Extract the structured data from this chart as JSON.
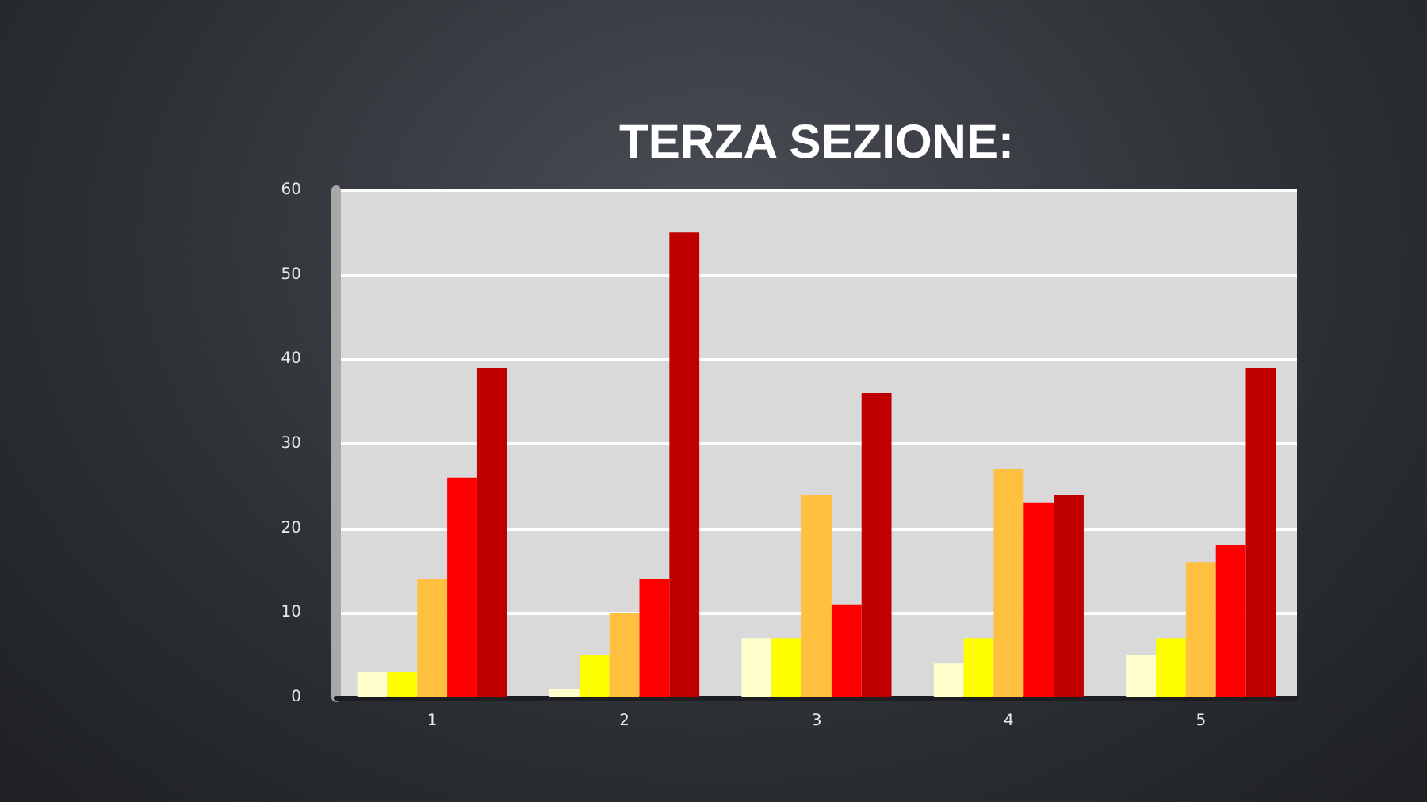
{
  "chart_data": {
    "type": "bar",
    "title": "TERZA SEZIONE:",
    "categories": [
      "1",
      "2",
      "3",
      "4",
      "5"
    ],
    "series": [
      {
        "color": "#ffffcc",
        "values": [
          3,
          1,
          7,
          4,
          5
        ]
      },
      {
        "color": "#ffff00",
        "values": [
          3,
          5,
          7,
          7,
          7
        ]
      },
      {
        "color": "#ffc040",
        "values": [
          14,
          10,
          24,
          27,
          16
        ]
      },
      {
        "color": "#ff0000",
        "values": [
          26,
          14,
          11,
          23,
          18
        ]
      },
      {
        "color": "#c00000",
        "values": [
          39,
          55,
          36,
          24,
          39
        ]
      }
    ],
    "ylim": [
      0,
      60
    ],
    "yticks": [
      0,
      10,
      20,
      30,
      40,
      50,
      60
    ],
    "grid": "y"
  }
}
